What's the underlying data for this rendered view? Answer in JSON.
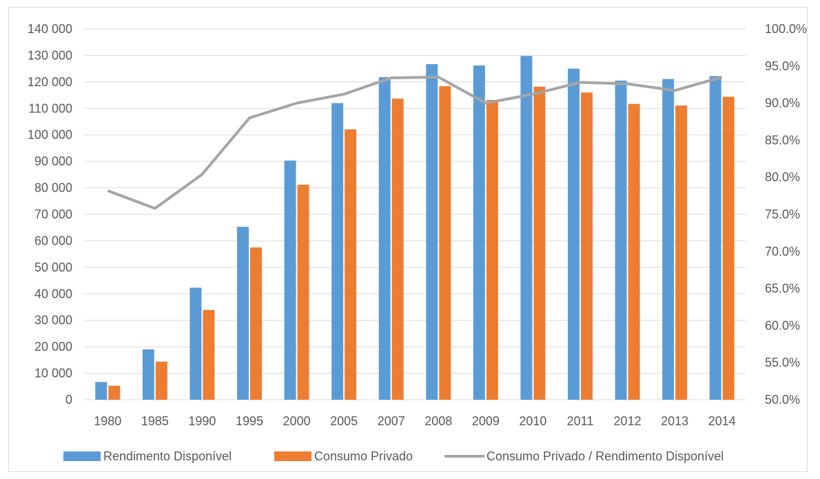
{
  "chart_data": {
    "type": "bar",
    "categories": [
      "1980",
      "1985",
      "1990",
      "1995",
      "2000",
      "2005",
      "2007",
      "2008",
      "2009",
      "2010",
      "2011",
      "2012",
      "2013",
      "2014"
    ],
    "series": [
      {
        "name": "Rendimento Disponível",
        "type": "bar",
        "axis": "left",
        "color": "#5b9bd5",
        "values": [
          6700,
          19000,
          42300,
          65300,
          90300,
          112000,
          121800,
          126700,
          126200,
          129800,
          125000,
          120500,
          121100,
          122200
        ]
      },
      {
        "name": "Consumo Privado",
        "type": "bar",
        "axis": "left",
        "color": "#ed7d31",
        "values": [
          5300,
          14400,
          33900,
          57500,
          81200,
          102100,
          113700,
          118400,
          113200,
          118200,
          116000,
          111700,
          111100,
          114400
        ]
      },
      {
        "name": "Consumo Privado / Rendimento Disponível",
        "type": "line",
        "axis": "right",
        "color": "#a5a5a5",
        "values": [
          78.2,
          75.8,
          80.4,
          88.0,
          90.0,
          91.2,
          93.4,
          93.5,
          90.0,
          91.2,
          92.8,
          92.6,
          91.7,
          93.5
        ]
      }
    ],
    "y_left": {
      "range": [
        0,
        140000
      ],
      "ticks": [
        0,
        10000,
        20000,
        30000,
        40000,
        50000,
        60000,
        70000,
        80000,
        90000,
        100000,
        110000,
        120000,
        130000,
        140000
      ],
      "tick_labels": [
        "0",
        "10 000",
        "20 000",
        "30 000",
        "40 000",
        "50 000",
        "60 000",
        "70 000",
        "80 000",
        "90 000",
        "100 000",
        "110 000",
        "120 000",
        "130 000",
        "140 000"
      ]
    },
    "y_right": {
      "range": [
        50,
        100
      ],
      "ticks": [
        50,
        55,
        60,
        65,
        70,
        75,
        80,
        85,
        90,
        95,
        100
      ],
      "tick_labels": [
        "50.0%",
        "55.0%",
        "60.0%",
        "65.0%",
        "70.0%",
        "75.0%",
        "80.0%",
        "85.0%",
        "90.0%",
        "95.0%",
        "100.0%"
      ]
    },
    "grid": true,
    "legend_position": "bottom",
    "legend": [
      "Rendimento Disponível",
      "Consumo Privado",
      "Consumo Privado / Rendimento Disponível"
    ],
    "colors": {
      "gridline": "#d9d9d9",
      "text": "#595959"
    }
  }
}
